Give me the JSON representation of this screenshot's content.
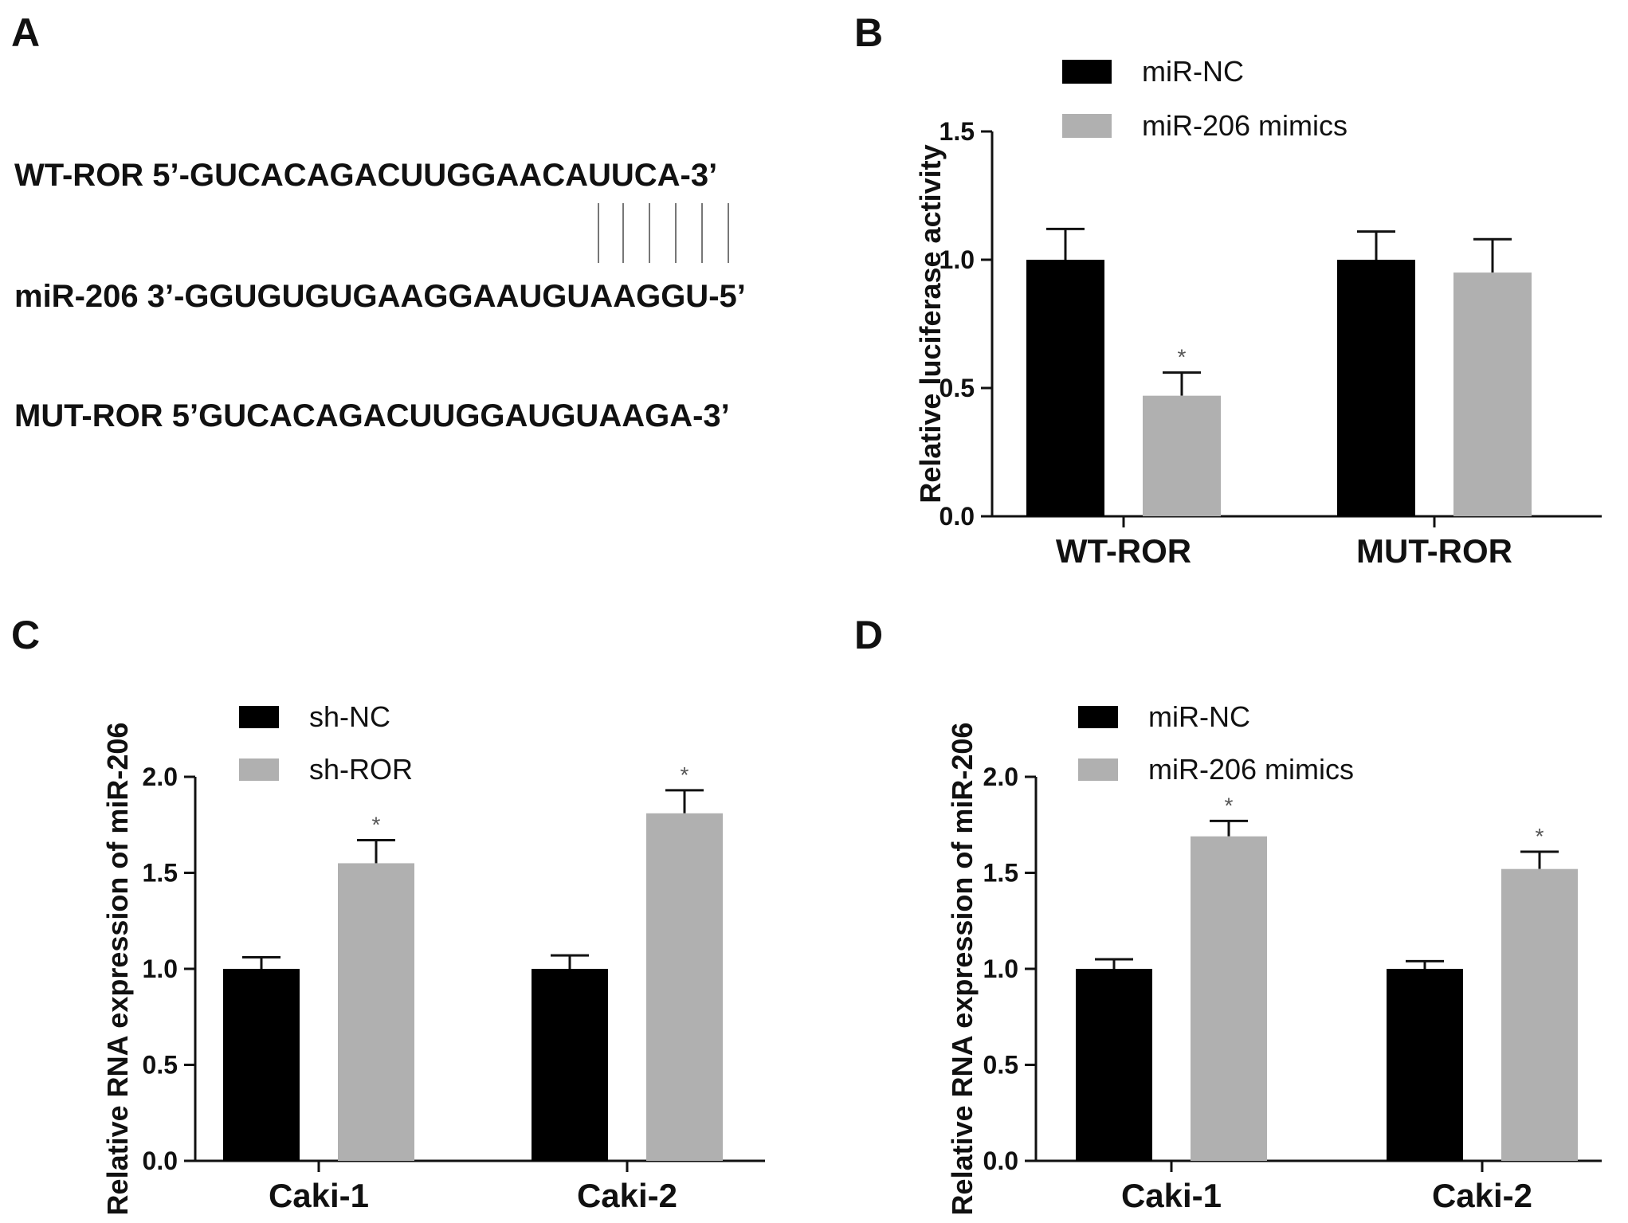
{
  "panel_letters": {
    "a": "A",
    "b": "B",
    "c": "C",
    "d": "D"
  },
  "sequences": {
    "wt": "WT-ROR 5’-GUCACAGACUUGGAACAUUCA-3’",
    "mir": "miR-206 3’-GGUGUGUGAAGGAAUGUAAGGU-5’",
    "mut": "MUT-ROR 5’GUCACAGACUUGGAUGUAAGA-3’"
  },
  "colors": {
    "series1": "#000000",
    "series2": "#b0b0b0"
  },
  "chart_data": [
    {
      "panel": "B",
      "type": "bar",
      "categories": [
        "WT-ROR",
        "MUT-ROR"
      ],
      "series": [
        {
          "name": "miR-NC",
          "values": [
            1.0,
            1.0
          ],
          "errors": [
            0.12,
            0.11
          ]
        },
        {
          "name": "miR-206 mimics",
          "values": [
            0.47,
            0.95
          ],
          "errors": [
            0.09,
            0.13
          ]
        }
      ],
      "significance": [
        "*",
        ""
      ],
      "ylabel": "Relative luciferase activity",
      "ylim": [
        0,
        1.5
      ],
      "yticks": [
        "0.0",
        "0.5",
        "1.0",
        "1.5"
      ],
      "legend": "top"
    },
    {
      "panel": "C",
      "type": "bar",
      "categories": [
        "Caki-1",
        "Caki-2"
      ],
      "series": [
        {
          "name": "sh-NC",
          "values": [
            1.0,
            1.0
          ],
          "errors": [
            0.06,
            0.07
          ]
        },
        {
          "name": "sh-ROR",
          "values": [
            1.55,
            1.81
          ],
          "errors": [
            0.12,
            0.12
          ]
        }
      ],
      "significance": [
        "*",
        "*"
      ],
      "ylabel": "Relative RNA expression of miR-206",
      "ylim": [
        0,
        2.0
      ],
      "yticks": [
        "0.0",
        "0.5",
        "1.0",
        "1.5",
        "2.0"
      ],
      "legend": "top-left"
    },
    {
      "panel": "D",
      "type": "bar",
      "categories": [
        "Caki-1",
        "Caki-2"
      ],
      "series": [
        {
          "name": "miR-NC",
          "values": [
            1.0,
            1.0
          ],
          "errors": [
            0.05,
            0.04
          ]
        },
        {
          "name": "miR-206 mimics",
          "values": [
            1.69,
            1.52
          ],
          "errors": [
            0.08,
            0.09
          ]
        }
      ],
      "significance": [
        "*",
        "*"
      ],
      "ylabel": "Relative RNA expression of miR-206",
      "ylim": [
        0,
        2.0
      ],
      "yticks": [
        "0.0",
        "0.5",
        "1.0",
        "1.5",
        "2.0"
      ],
      "legend": "top-left"
    }
  ]
}
